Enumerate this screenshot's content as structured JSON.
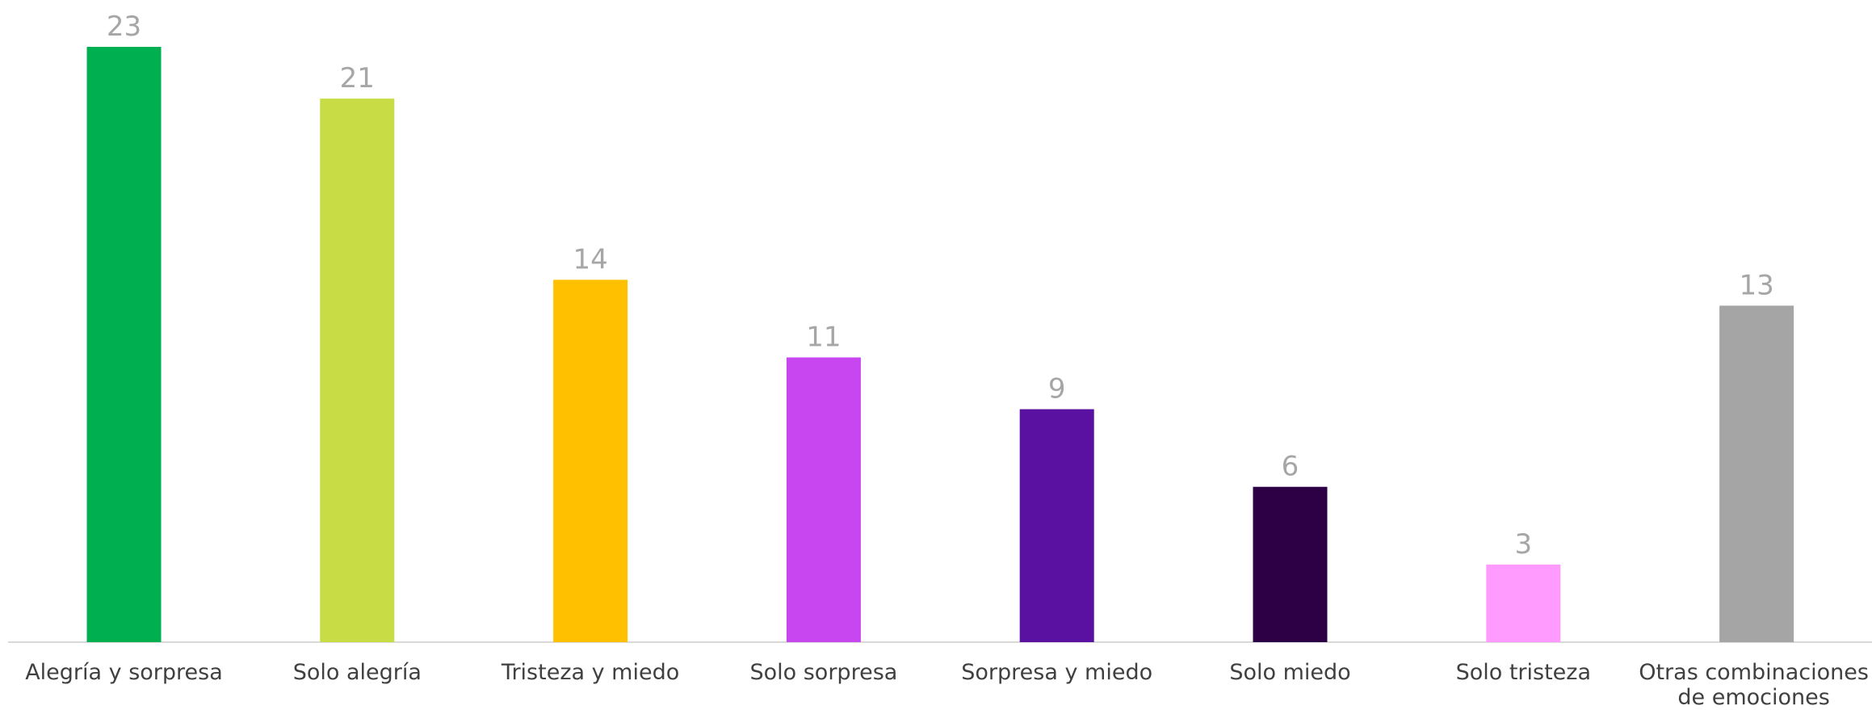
{
  "chart_data": {
    "type": "bar",
    "title": "",
    "xlabel": "",
    "ylabel": "",
    "categories": [
      "Alegría y sorpresa",
      "Solo alegría",
      "Tristeza y miedo",
      "Solo sorpresa",
      "Sorpresa y miedo",
      "Solo miedo",
      "Solo tristeza",
      "Otras combinaciones de emociones"
    ],
    "category_lines": [
      [
        "Alegría y sorpresa"
      ],
      [
        "Solo alegría"
      ],
      [
        "Tristeza y miedo"
      ],
      [
        "Solo sorpresa"
      ],
      [
        "Sorpresa y miedo"
      ],
      [
        "Solo miedo"
      ],
      [
        "Solo tristeza"
      ],
      [
        "Otras combinaciones",
        "de emociones"
      ]
    ],
    "values": [
      23,
      21,
      14,
      11,
      9,
      6,
      3,
      13
    ],
    "colors": [
      "#00b050",
      "#c8dc46",
      "#ffc000",
      "#c846f0",
      "#5a10a0",
      "#2d0046",
      "#ff9bff",
      "#a5a5a5"
    ],
    "ylim": [
      0,
      23
    ],
    "grid": false,
    "legend": "none"
  }
}
